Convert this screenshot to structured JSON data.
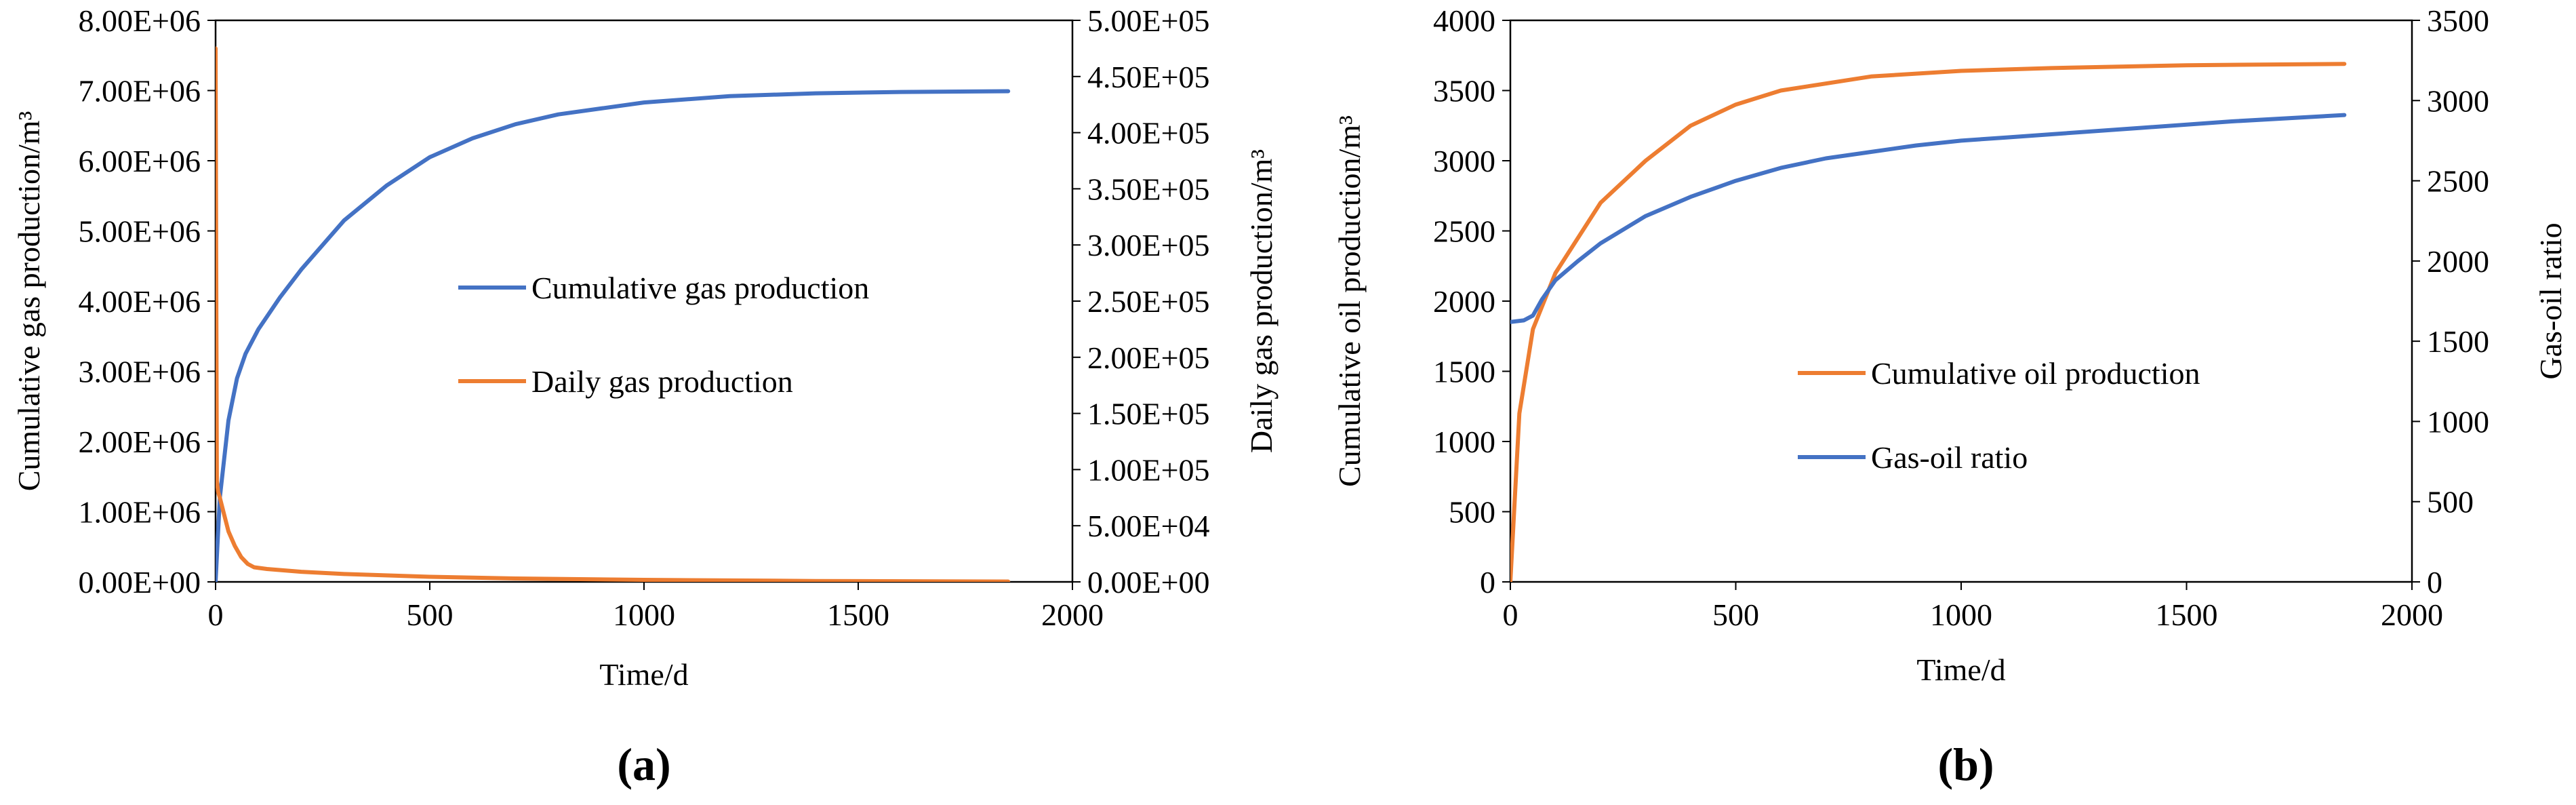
{
  "chart_data": [
    {
      "type": "line",
      "panel_label": "(a)",
      "xlabel": "Time/d",
      "ylabel": "Cumulative gas production/m³",
      "y2label": "Daily gas production/m³",
      "xlim": [
        0,
        2000
      ],
      "ylim": [
        0,
        8000000
      ],
      "y2lim": [
        0,
        500000
      ],
      "x_ticks": [
        0,
        500,
        1000,
        1500,
        2000
      ],
      "y_ticks": [
        "0.00E+00",
        "1.00E+06",
        "2.00E+06",
        "3.00E+06",
        "4.00E+06",
        "5.00E+06",
        "6.00E+06",
        "7.00E+06",
        "8.00E+06"
      ],
      "y2_ticks": [
        "0.00E+00",
        "5.00E+04",
        "1.00E+05",
        "1.50E+05",
        "2.00E+05",
        "2.50E+05",
        "3.00E+05",
        "3.50E+05",
        "4.00E+05",
        "4.50E+05",
        "5.00E+05"
      ],
      "legend_position": "center",
      "series": [
        {
          "name": "Cumulative gas production",
          "color": "#4472c4",
          "axis": "left",
          "x": [
            0,
            10,
            30,
            50,
            70,
            100,
            150,
            200,
            300,
            400,
            500,
            600,
            700,
            800,
            1000,
            1200,
            1400,
            1600,
            1850
          ],
          "values": [
            0,
            1200000,
            2300000,
            2900000,
            3250000,
            3600000,
            4050000,
            4450000,
            5150000,
            5650000,
            6050000,
            6320000,
            6520000,
            6660000,
            6830000,
            6920000,
            6960000,
            6980000,
            6990000
          ]
        },
        {
          "name": "Daily gas production",
          "color": "#ed7d31",
          "axis": "right",
          "x": [
            0,
            3,
            6,
            10,
            20,
            30,
            45,
            60,
            75,
            90,
            120,
            200,
            300,
            500,
            700,
            1000,
            1400,
            1850
          ],
          "values": [
            475000,
            90000,
            80000,
            75000,
            60000,
            45000,
            32000,
            22000,
            16000,
            13000,
            11500,
            9000,
            7000,
            4500,
            3000,
            1800,
            800,
            300
          ]
        }
      ]
    },
    {
      "type": "line",
      "panel_label": "(b)",
      "xlabel": "Time/d",
      "ylabel": "Cumulative oil production/m³",
      "y2label": "Gas-oil ratio",
      "xlim": [
        0,
        2000
      ],
      "ylim": [
        0,
        4000
      ],
      "y2lim": [
        0,
        3500
      ],
      "x_ticks": [
        0,
        500,
        1000,
        1500,
        2000
      ],
      "y_ticks": [
        "0",
        "500",
        "1000",
        "1500",
        "2000",
        "2500",
        "3000",
        "3500",
        "4000"
      ],
      "y2_ticks": [
        "0",
        "500",
        "1000",
        "1500",
        "2000",
        "2500",
        "3000",
        "3500"
      ],
      "legend_position": "center-right",
      "series": [
        {
          "name": "Cumulative oil production",
          "color": "#ed7d31",
          "axis": "left",
          "x": [
            0,
            20,
            50,
            100,
            200,
            300,
            400,
            500,
            600,
            800,
            1000,
            1200,
            1500,
            1850
          ],
          "values": [
            0,
            1200,
            1800,
            2200,
            2700,
            3000,
            3250,
            3400,
            3500,
            3600,
            3640,
            3660,
            3680,
            3690
          ]
        },
        {
          "name": "Gas-oil ratio",
          "color": "#4472c4",
          "axis": "right",
          "x": [
            0,
            30,
            50,
            70,
            100,
            150,
            200,
            300,
            400,
            500,
            600,
            700,
            800,
            900,
            1000,
            1100,
            1200,
            1400,
            1600,
            1850
          ],
          "values": [
            1620,
            1630,
            1660,
            1760,
            1880,
            2000,
            2110,
            2280,
            2400,
            2500,
            2580,
            2640,
            2680,
            2720,
            2750,
            2770,
            2790,
            2830,
            2870,
            2910
          ]
        }
      ]
    }
  ]
}
